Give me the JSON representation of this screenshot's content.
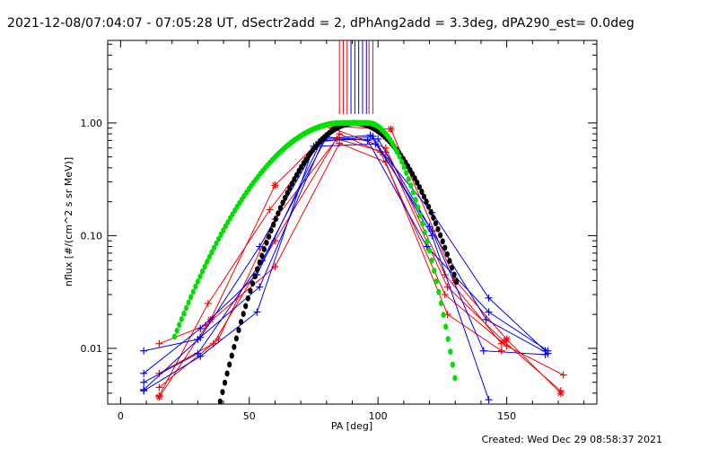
{
  "header": {
    "title": "2021-12-08/07:04:07 - 07:05:28 UT, dSectr2add = 2, dPhAng2add = 3.3deg, dPA290_est=  0.0deg"
  },
  "footer": {
    "created": "Created: Wed Dec 29 08:58:37 2021"
  },
  "colors": {
    "red": "#ff0000",
    "blue": "#0000ff",
    "black": "#000000",
    "green": "#00e000"
  },
  "chart_data": {
    "type": "line",
    "xlabel": "PA [deg]",
    "ylabel": "nflux [#/(cm^2 s sr MeV)]",
    "xlim": [
      -5,
      185
    ],
    "ylim": [
      0.0032,
      5.4
    ],
    "yscale": "log",
    "x_ticks": [
      0,
      50,
      100,
      150
    ],
    "x_tick_labels": [
      "0",
      "50",
      "100",
      "150"
    ],
    "y_ticks": [
      0.01,
      0.1,
      1.0
    ],
    "y_tick_labels": [
      "0.01",
      "0.10",
      "1.00"
    ],
    "grid": false,
    "pa_markers": [
      {
        "color": "red",
        "x": [
          85.0,
          86.5,
          88.0,
          96.5,
          98.0
        ]
      },
      {
        "color": "blue",
        "x": [
          89.5,
          91.0,
          92.5,
          94.0,
          95.5
        ]
      }
    ],
    "series": [
      {
        "color": "red",
        "marker": "*",
        "x": [
          15,
          35,
          60,
          83,
          105,
          130,
          150,
          171
        ],
        "y": [
          0.0037,
          0.018,
          0.28,
          0.93,
          0.88,
          0.04,
          0.012,
          0.004
        ]
      },
      {
        "color": "red",
        "marker": "+",
        "x": [
          15,
          38,
          60,
          84,
          103,
          127,
          149,
          171
        ],
        "y": [
          0.0045,
          0.012,
          0.14,
          0.72,
          0.55,
          0.035,
          0.0115,
          0.0042
        ]
      },
      {
        "color": "red",
        "marker": "+",
        "x": [
          15,
          36,
          60,
          85,
          101,
          126,
          150,
          172
        ],
        "y": [
          0.006,
          0.011,
          0.09,
          0.8,
          0.55,
          0.03,
          0.0105,
          0.0058
        ]
      },
      {
        "color": "red",
        "marker": "+",
        "x": [
          15,
          33,
          60,
          85,
          103,
          127,
          148
        ],
        "y": [
          0.011,
          0.016,
          0.053,
          0.66,
          0.45,
          0.02,
          0.0095
        ]
      },
      {
        "color": "red",
        "marker": "+",
        "x": [
          15,
          34,
          58,
          82,
          103,
          126,
          148
        ],
        "y": [
          0.0038,
          0.025,
          0.17,
          0.9,
          0.6,
          0.045,
          0.011
        ]
      },
      {
        "color": "blue",
        "marker": "+",
        "x": [
          9,
          31,
          53,
          75,
          99,
          121,
          143,
          165
        ],
        "y": [
          0.0042,
          0.0085,
          0.021,
          0.62,
          0.65,
          0.16,
          0.028,
          0.0095
        ]
      },
      {
        "color": "blue",
        "marker": "+",
        "x": [
          9,
          31,
          53,
          78,
          100,
          120,
          142,
          166
        ],
        "y": [
          0.006,
          0.015,
          0.045,
          0.7,
          0.72,
          0.12,
          0.018,
          0.009
        ]
      },
      {
        "color": "blue",
        "marker": "+",
        "x": [
          9,
          30,
          54,
          79,
          97,
          121,
          141,
          165
        ],
        "y": [
          0.0095,
          0.012,
          0.035,
          0.72,
          0.78,
          0.11,
          0.0095,
          0.0088
        ]
      },
      {
        "color": "blue",
        "marker": "+",
        "x": [
          9,
          30,
          55,
          80,
          96,
          119,
          143,
          166
        ],
        "y": [
          0.005,
          0.009,
          0.06,
          0.75,
          0.7,
          0.08,
          0.021,
          0.0095
        ]
      },
      {
        "color": "blue",
        "marker": "+",
        "x": [
          9,
          31,
          54,
          77,
          98,
          121,
          143
        ],
        "y": [
          0.0043,
          0.0125,
          0.08,
          0.68,
          0.76,
          0.1,
          0.0035
        ]
      }
    ],
    "fit_black": {
      "color": "black",
      "center": 91,
      "sigma": 15.5,
      "x_range": [
        36,
        131
      ]
    },
    "fit_green": {
      "color": "green",
      "center": 91,
      "inner_sigma": 22,
      "outer_sigma": 10.5,
      "flat_half_width": 5,
      "x_range": [
        21,
        130
      ]
    }
  }
}
